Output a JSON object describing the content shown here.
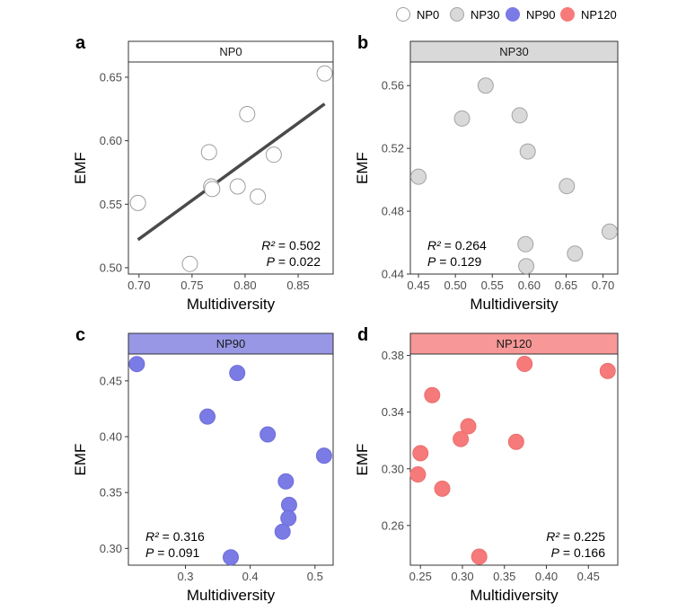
{
  "legend": {
    "items": [
      {
        "label": "NP0",
        "fill": "#ffffff",
        "stroke": "#9e9e9e"
      },
      {
        "label": "NP30",
        "fill": "#d9d9d9",
        "stroke": "#a3a3a3"
      },
      {
        "label": "NP90",
        "fill": "#7b7be6",
        "stroke": "#7b7be6"
      },
      {
        "label": "NP120",
        "fill": "#f77a7a",
        "stroke": "#f77a7a"
      }
    ]
  },
  "chart_data": [
    {
      "type": "scatter",
      "panel_letter": "a",
      "strip_label": "NP0",
      "strip_color": "#ffffff",
      "point_fill": "#ffffff",
      "point_stroke": "#9e9e9e",
      "xlabel": "Multidiversity",
      "ylabel": "EMF",
      "xlim": [
        0.69,
        0.883
      ],
      "ylim": [
        0.495,
        0.662
      ],
      "xticks": [
        0.7,
        0.75,
        0.8,
        0.85
      ],
      "xtick_labels": [
        "0.70",
        "0.75",
        "0.80",
        "0.85"
      ],
      "yticks": [
        0.5,
        0.55,
        0.6,
        0.65
      ],
      "ytick_labels": [
        "0.50",
        "0.55",
        "0.60",
        "0.65"
      ],
      "x": [
        0.699,
        0.748,
        0.766,
        0.768,
        0.769,
        0.793,
        0.802,
        0.812,
        0.827,
        0.875
      ],
      "y": [
        0.551,
        0.503,
        0.591,
        0.564,
        0.562,
        0.564,
        0.621,
        0.556,
        0.589,
        0.653
      ],
      "fit_line": {
        "x": [
          0.699,
          0.875
        ],
        "y": [
          0.522,
          0.629
        ],
        "color": "#4a4a4a"
      },
      "r2_label": "R²",
      "r2_value": " = 0.502",
      "p_label": "P",
      "p_value": " = 0.022",
      "stats_position": "bottom-right"
    },
    {
      "type": "scatter",
      "panel_letter": "b",
      "strip_label": "NP30",
      "strip_color": "#d9d9d9",
      "point_fill": "#d9d9d9",
      "point_stroke": "#a3a3a3",
      "xlabel": "Multidiversity",
      "ylabel": "EMF",
      "xlim": [
        0.439,
        0.72
      ],
      "ylim": [
        0.44,
        0.575
      ],
      "xticks": [
        0.45,
        0.5,
        0.55,
        0.6,
        0.65,
        0.7
      ],
      "xtick_labels": [
        "0.45",
        "0.50",
        "0.55",
        "0.60",
        "0.65",
        "0.70"
      ],
      "yticks": [
        0.44,
        0.48,
        0.52,
        0.56
      ],
      "ytick_labels": [
        "0.44",
        "0.48",
        "0.52",
        "0.56"
      ],
      "x": [
        0.45,
        0.509,
        0.541,
        0.587,
        0.598,
        0.595,
        0.596,
        0.651,
        0.662,
        0.709
      ],
      "y": [
        0.502,
        0.539,
        0.56,
        0.541,
        0.518,
        0.459,
        0.445,
        0.496,
        0.453,
        0.467
      ],
      "r2_label": "R²",
      "r2_value": " = 0.264",
      "p_label": "P",
      "p_value": " = 0.129",
      "stats_position": "bottom-left"
    },
    {
      "type": "scatter",
      "panel_letter": "c",
      "strip_label": "NP90",
      "strip_color": "#9797e6",
      "point_fill": "#7b7be6",
      "point_stroke": "#6e6edb",
      "xlabel": "Multidiversity",
      "ylabel": "EMF",
      "xlim": [
        0.212,
        0.528
      ],
      "ylim": [
        0.285,
        0.474
      ],
      "xticks": [
        0.3,
        0.4,
        0.5
      ],
      "xtick_labels": [
        "0.3",
        "0.4",
        "0.5"
      ],
      "yticks": [
        0.3,
        0.35,
        0.4,
        0.45
      ],
      "ytick_labels": [
        "0.30",
        "0.35",
        "0.40",
        "0.45"
      ],
      "x": [
        0.225,
        0.334,
        0.38,
        0.37,
        0.427,
        0.455,
        0.46,
        0.459,
        0.45,
        0.514
      ],
      "y": [
        0.465,
        0.418,
        0.457,
        0.292,
        0.402,
        0.36,
        0.339,
        0.327,
        0.315,
        0.383
      ],
      "r2_label": "R²",
      "r2_value": " = 0.316",
      "p_label": "P",
      "p_value": " = 0.091",
      "stats_position": "bottom-left"
    },
    {
      "type": "scatter",
      "panel_letter": "d",
      "strip_label": "NP120",
      "strip_color": "#f79797",
      "point_fill": "#f77a7a",
      "point_stroke": "#eb6e6e",
      "xlabel": "Multidiversity",
      "ylabel": "EMF",
      "xlim": [
        0.238,
        0.485
      ],
      "ylim": [
        0.232,
        0.381
      ],
      "xticks": [
        0.25,
        0.3,
        0.35,
        0.4,
        0.45
      ],
      "xtick_labels": [
        "0.25",
        "0.30",
        "0.35",
        "0.40",
        "0.45"
      ],
      "yticks": [
        0.26,
        0.3,
        0.34,
        0.38
      ],
      "ytick_labels": [
        "0.26",
        "0.30",
        "0.34",
        "0.38"
      ],
      "x": [
        0.247,
        0.25,
        0.264,
        0.276,
        0.298,
        0.307,
        0.32,
        0.364,
        0.374,
        0.473
      ],
      "y": [
        0.296,
        0.311,
        0.352,
        0.286,
        0.321,
        0.33,
        0.238,
        0.319,
        0.374,
        0.369
      ],
      "r2_label": "R²",
      "r2_value": " = 0.225",
      "p_label": "P",
      "p_value": " = 0.166",
      "stats_position": "bottom-right"
    }
  ]
}
